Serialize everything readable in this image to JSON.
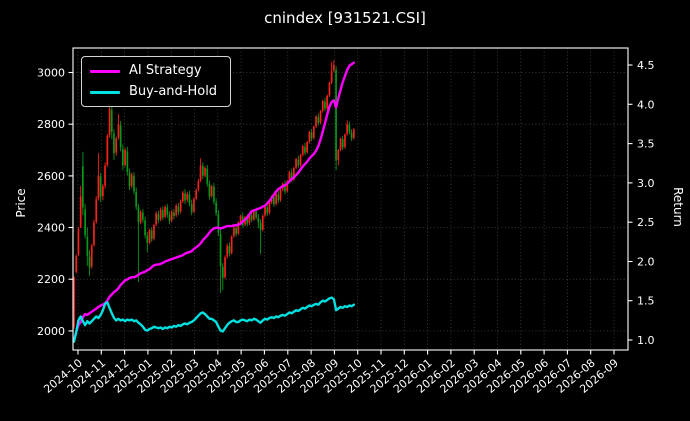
{
  "colors": {
    "background": "#000000",
    "text": "#ffffff",
    "grid": "#8a8a8a",
    "spine": "#ffffff",
    "candle_up": "#f8221b",
    "candle_down": "#07991c",
    "ai_line": "#ff00ff",
    "bh_line": "#00e0e0"
  },
  "chart_data": {
    "type": "candlestick+line",
    "title": "cnindex [931521.CSI]",
    "legend_position": "upper-left",
    "grid": true,
    "x_axis": {
      "tick_labels": [
        "2024-10",
        "2024-11",
        "2024-12",
        "2025-01",
        "2025-02",
        "2025-03",
        "2025-04",
        "2025-05",
        "2025-06",
        "2025-07",
        "2025-08",
        "2025-09",
        "2025-10",
        "2025-11",
        "2025-12",
        "2026-01",
        "2026-02",
        "2026-03",
        "2026-04",
        "2026-05",
        "2026-06",
        "2026-07",
        "2026-08",
        "2026-09"
      ],
      "range_months": [
        -0.215,
        23.6
      ]
    },
    "y_left": {
      "label": "Price",
      "ticks": [
        2000,
        2200,
        2400,
        2600,
        2800,
        3000
      ],
      "range": [
        1926,
        3095
      ]
    },
    "y_right": {
      "label": "Return",
      "ticks": [
        1.0,
        1.5,
        2.0,
        2.5,
        3.0,
        3.5,
        4.0,
        4.5
      ],
      "range": [
        0.873,
        4.717
      ]
    },
    "candles": {
      "start_month": -0.172,
      "step_month": 0.0953,
      "up_color": "#f8221b",
      "down_color": "#07991c",
      "ohlc": [
        [
          2015,
          2212,
          2008,
          2205
        ],
        [
          2228,
          2296,
          2222,
          2290
        ],
        [
          2295,
          2402,
          2290,
          2395
        ],
        [
          2400,
          2562,
          2398,
          2520
        ],
        [
          2638,
          2693,
          2448,
          2478
        ],
        [
          2470,
          2492,
          2358,
          2370
        ],
        [
          2365,
          2400,
          2252,
          2290
        ],
        [
          2288,
          2312,
          2212,
          2245
        ],
        [
          2250,
          2338,
          2240,
          2330
        ],
        [
          2332,
          2430,
          2325,
          2420
        ],
        [
          2422,
          2522,
          2415,
          2510
        ],
        [
          2512,
          2688,
          2505,
          2600
        ],
        [
          2598,
          2612,
          2498,
          2520
        ],
        [
          2522,
          2568,
          2505,
          2560
        ],
        [
          2562,
          2652,
          2550,
          2640
        ],
        [
          2642,
          2762,
          2635,
          2755
        ],
        [
          2758,
          2902,
          2748,
          2860
        ],
        [
          2855,
          2872,
          2742,
          2770
        ],
        [
          2765,
          2782,
          2662,
          2688
        ],
        [
          2690,
          2752,
          2678,
          2745
        ],
        [
          2748,
          2840,
          2740,
          2800
        ],
        [
          2795,
          2812,
          2695,
          2710
        ],
        [
          2705,
          2722,
          2622,
          2640
        ],
        [
          2642,
          2708,
          2635,
          2700
        ],
        [
          2695,
          2712,
          2602,
          2615
        ],
        [
          2612,
          2628,
          2545,
          2560
        ],
        [
          2562,
          2612,
          2552,
          2605
        ],
        [
          2600,
          2615,
          2528,
          2540
        ],
        [
          2538,
          2555,
          2468,
          2480
        ],
        [
          2478,
          2492,
          2190,
          2420
        ],
        [
          2422,
          2468,
          2412,
          2460
        ],
        [
          2458,
          2472,
          2418,
          2430
        ],
        [
          2428,
          2442,
          2358,
          2370
        ],
        [
          2368,
          2382,
          2305,
          2340
        ],
        [
          2342,
          2395,
          2335,
          2390
        ],
        [
          2388,
          2402,
          2345,
          2355
        ],
        [
          2358,
          2415,
          2350,
          2410
        ],
        [
          2412,
          2462,
          2405,
          2455
        ],
        [
          2452,
          2465,
          2418,
          2430
        ],
        [
          2432,
          2478,
          2425,
          2470
        ],
        [
          2468,
          2482,
          2428,
          2440
        ],
        [
          2442,
          2488,
          2435,
          2480
        ],
        [
          2478,
          2492,
          2438,
          2450
        ],
        [
          2448,
          2462,
          2412,
          2425
        ],
        [
          2428,
          2468,
          2420,
          2460
        ],
        [
          2458,
          2472,
          2432,
          2445
        ],
        [
          2448,
          2492,
          2440,
          2485
        ],
        [
          2482,
          2495,
          2448,
          2460
        ],
        [
          2462,
          2508,
          2455,
          2500
        ],
        [
          2502,
          2542,
          2495,
          2535
        ],
        [
          2532,
          2548,
          2492,
          2505
        ],
        [
          2508,
          2538,
          2498,
          2530
        ],
        [
          2528,
          2542,
          2482,
          2495
        ],
        [
          2492,
          2508,
          2448,
          2460
        ],
        [
          2462,
          2518,
          2455,
          2510
        ],
        [
          2512,
          2552,
          2505,
          2545
        ],
        [
          2548,
          2588,
          2540,
          2580
        ],
        [
          2582,
          2668,
          2575,
          2640
        ],
        [
          2638,
          2652,
          2588,
          2600
        ],
        [
          2602,
          2638,
          2595,
          2630
        ],
        [
          2628,
          2642,
          2558,
          2570
        ],
        [
          2568,
          2582,
          2508,
          2520
        ],
        [
          2522,
          2565,
          2515,
          2560
        ],
        [
          2558,
          2572,
          2488,
          2500
        ],
        [
          2498,
          2512,
          2445,
          2455
        ],
        [
          2452,
          2468,
          2368,
          2380
        ],
        [
          2375,
          2392,
          2147,
          2250
        ],
        [
          2248,
          2262,
          2158,
          2205
        ],
        [
          2208,
          2292,
          2200,
          2285
        ],
        [
          2288,
          2338,
          2280,
          2330
        ],
        [
          2328,
          2342,
          2288,
          2300
        ],
        [
          2302,
          2370,
          2295,
          2365
        ],
        [
          2368,
          2408,
          2360,
          2400
        ],
        [
          2398,
          2412,
          2365,
          2375
        ],
        [
          2378,
          2425,
          2370,
          2420
        ],
        [
          2422,
          2450,
          2415,
          2445
        ],
        [
          2442,
          2458,
          2400,
          2410
        ],
        [
          2412,
          2445,
          2405,
          2440
        ],
        [
          2438,
          2452,
          2405,
          2415
        ],
        [
          2418,
          2455,
          2410,
          2450
        ],
        [
          2448,
          2462,
          2420,
          2430
        ],
        [
          2432,
          2470,
          2425,
          2465
        ],
        [
          2462,
          2478,
          2432,
          2440
        ],
        [
          2438,
          2452,
          2398,
          2420
        ],
        [
          2418,
          2432,
          2298,
          2390
        ],
        [
          2392,
          2450,
          2385,
          2445
        ],
        [
          2448,
          2485,
          2440,
          2480
        ],
        [
          2478,
          2492,
          2445,
          2455
        ],
        [
          2458,
          2500,
          2450,
          2495
        ],
        [
          2498,
          2525,
          2490,
          2520
        ],
        [
          2518,
          2532,
          2480,
          2490
        ],
        [
          2492,
          2535,
          2485,
          2530
        ],
        [
          2528,
          2542,
          2495,
          2505
        ],
        [
          2508,
          2550,
          2500,
          2545
        ],
        [
          2548,
          2575,
          2540,
          2570
        ],
        [
          2568,
          2582,
          2530,
          2540
        ],
        [
          2542,
          2585,
          2535,
          2580
        ],
        [
          2582,
          2620,
          2575,
          2615
        ],
        [
          2612,
          2628,
          2575,
          2585
        ],
        [
          2588,
          2635,
          2580,
          2630
        ],
        [
          2632,
          2670,
          2625,
          2665
        ],
        [
          2662,
          2678,
          2630,
          2640
        ],
        [
          2642,
          2685,
          2635,
          2680
        ],
        [
          2682,
          2720,
          2675,
          2715
        ],
        [
          2712,
          2728,
          2680,
          2690
        ],
        [
          2692,
          2735,
          2685,
          2730
        ],
        [
          2732,
          2775,
          2725,
          2770
        ],
        [
          2768,
          2782,
          2735,
          2745
        ],
        [
          2748,
          2795,
          2740,
          2790
        ],
        [
          2792,
          2835,
          2785,
          2830
        ],
        [
          2828,
          2842,
          2795,
          2805
        ],
        [
          2808,
          2855,
          2800,
          2850
        ],
        [
          2852,
          2895,
          2845,
          2890
        ],
        [
          2888,
          2902,
          2850,
          2860
        ],
        [
          2862,
          2915,
          2855,
          2910
        ],
        [
          2912,
          2965,
          2905,
          2960
        ],
        [
          2962,
          3040,
          2955,
          3005
        ],
        [
          3008,
          3048,
          3000,
          3030
        ],
        [
          3010,
          3025,
          2622,
          2660
        ],
        [
          2662,
          2705,
          2640,
          2700
        ],
        [
          2702,
          2748,
          2695,
          2745
        ],
        [
          2742,
          2755,
          2700,
          2710
        ],
        [
          2712,
          2765,
          2705,
          2760
        ],
        [
          2762,
          2815,
          2755,
          2800
        ],
        [
          2798,
          2810,
          2760,
          2770
        ],
        [
          2768,
          2780,
          2735,
          2745
        ],
        [
          2748,
          2785,
          2740,
          2780
        ]
      ]
    },
    "series": [
      {
        "name": "AI Strategy",
        "color": "#ff00ff",
        "axis": "right",
        "start_month": -0.172,
        "step_month": 0.0953,
        "values": [
          1.0,
          1.1,
          1.19,
          1.23,
          1.29,
          1.33,
          1.32,
          1.34,
          1.36,
          1.38,
          1.4,
          1.42,
          1.44,
          1.45,
          1.47,
          1.5,
          1.55,
          1.58,
          1.61,
          1.63,
          1.66,
          1.7,
          1.73,
          1.76,
          1.77,
          1.79,
          1.8,
          1.8,
          1.81,
          1.83,
          1.85,
          1.86,
          1.87,
          1.89,
          1.9,
          1.93,
          1.95,
          1.96,
          1.96,
          1.97,
          1.98,
          2.0,
          2.01,
          2.02,
          2.03,
          2.04,
          2.05,
          2.06,
          2.07,
          2.08,
          2.1,
          2.11,
          2.12,
          2.13,
          2.16,
          2.18,
          2.2,
          2.23,
          2.27,
          2.3,
          2.33,
          2.37,
          2.4,
          2.42,
          2.43,
          2.43,
          2.42,
          2.43,
          2.44,
          2.45,
          2.45,
          2.45,
          2.46,
          2.46,
          2.47,
          2.48,
          2.51,
          2.53,
          2.56,
          2.6,
          2.64,
          2.65,
          2.66,
          2.67,
          2.68,
          2.7,
          2.71,
          2.74,
          2.77,
          2.81,
          2.85,
          2.89,
          2.92,
          2.94,
          2.96,
          2.97,
          2.99,
          3.02,
          3.05,
          3.07,
          3.1,
          3.13,
          3.17,
          3.21,
          3.24,
          3.27,
          3.31,
          3.34,
          3.37,
          3.41,
          3.47,
          3.55,
          3.65,
          3.76,
          3.87,
          3.97,
          4.03,
          4.05,
          3.96,
          4.08,
          4.18,
          4.28,
          4.36,
          4.44,
          4.49,
          4.51,
          4.53
        ]
      },
      {
        "name": "Buy-and-Hold",
        "color": "#00e0e0",
        "axis": "right",
        "start_month": -0.172,
        "step_month": 0.0953,
        "values": [
          0.98,
          1.1,
          1.25,
          1.3,
          1.24,
          1.19,
          1.24,
          1.21,
          1.24,
          1.27,
          1.3,
          1.28,
          1.32,
          1.38,
          1.46,
          1.48,
          1.41,
          1.34,
          1.28,
          1.25,
          1.27,
          1.25,
          1.26,
          1.24,
          1.26,
          1.25,
          1.26,
          1.24,
          1.25,
          1.22,
          1.2,
          1.17,
          1.13,
          1.12,
          1.14,
          1.15,
          1.17,
          1.16,
          1.15,
          1.16,
          1.14,
          1.16,
          1.15,
          1.17,
          1.16,
          1.18,
          1.17,
          1.19,
          1.18,
          1.2,
          1.21,
          1.2,
          1.22,
          1.23,
          1.25,
          1.28,
          1.31,
          1.34,
          1.35,
          1.33,
          1.3,
          1.27,
          1.27,
          1.25,
          1.23,
          1.17,
          1.12,
          1.11,
          1.15,
          1.19,
          1.22,
          1.24,
          1.25,
          1.23,
          1.23,
          1.25,
          1.26,
          1.25,
          1.24,
          1.26,
          1.25,
          1.27,
          1.26,
          1.24,
          1.22,
          1.25,
          1.27,
          1.26,
          1.28,
          1.29,
          1.28,
          1.3,
          1.29,
          1.31,
          1.32,
          1.31,
          1.33,
          1.35,
          1.34,
          1.36,
          1.38,
          1.37,
          1.39,
          1.41,
          1.4,
          1.42,
          1.44,
          1.43,
          1.45,
          1.46,
          1.45,
          1.48,
          1.5,
          1.49,
          1.51,
          1.53,
          1.54,
          1.52,
          1.38,
          1.4,
          1.42,
          1.41,
          1.43,
          1.42,
          1.44,
          1.43,
          1.45
        ]
      }
    ]
  }
}
